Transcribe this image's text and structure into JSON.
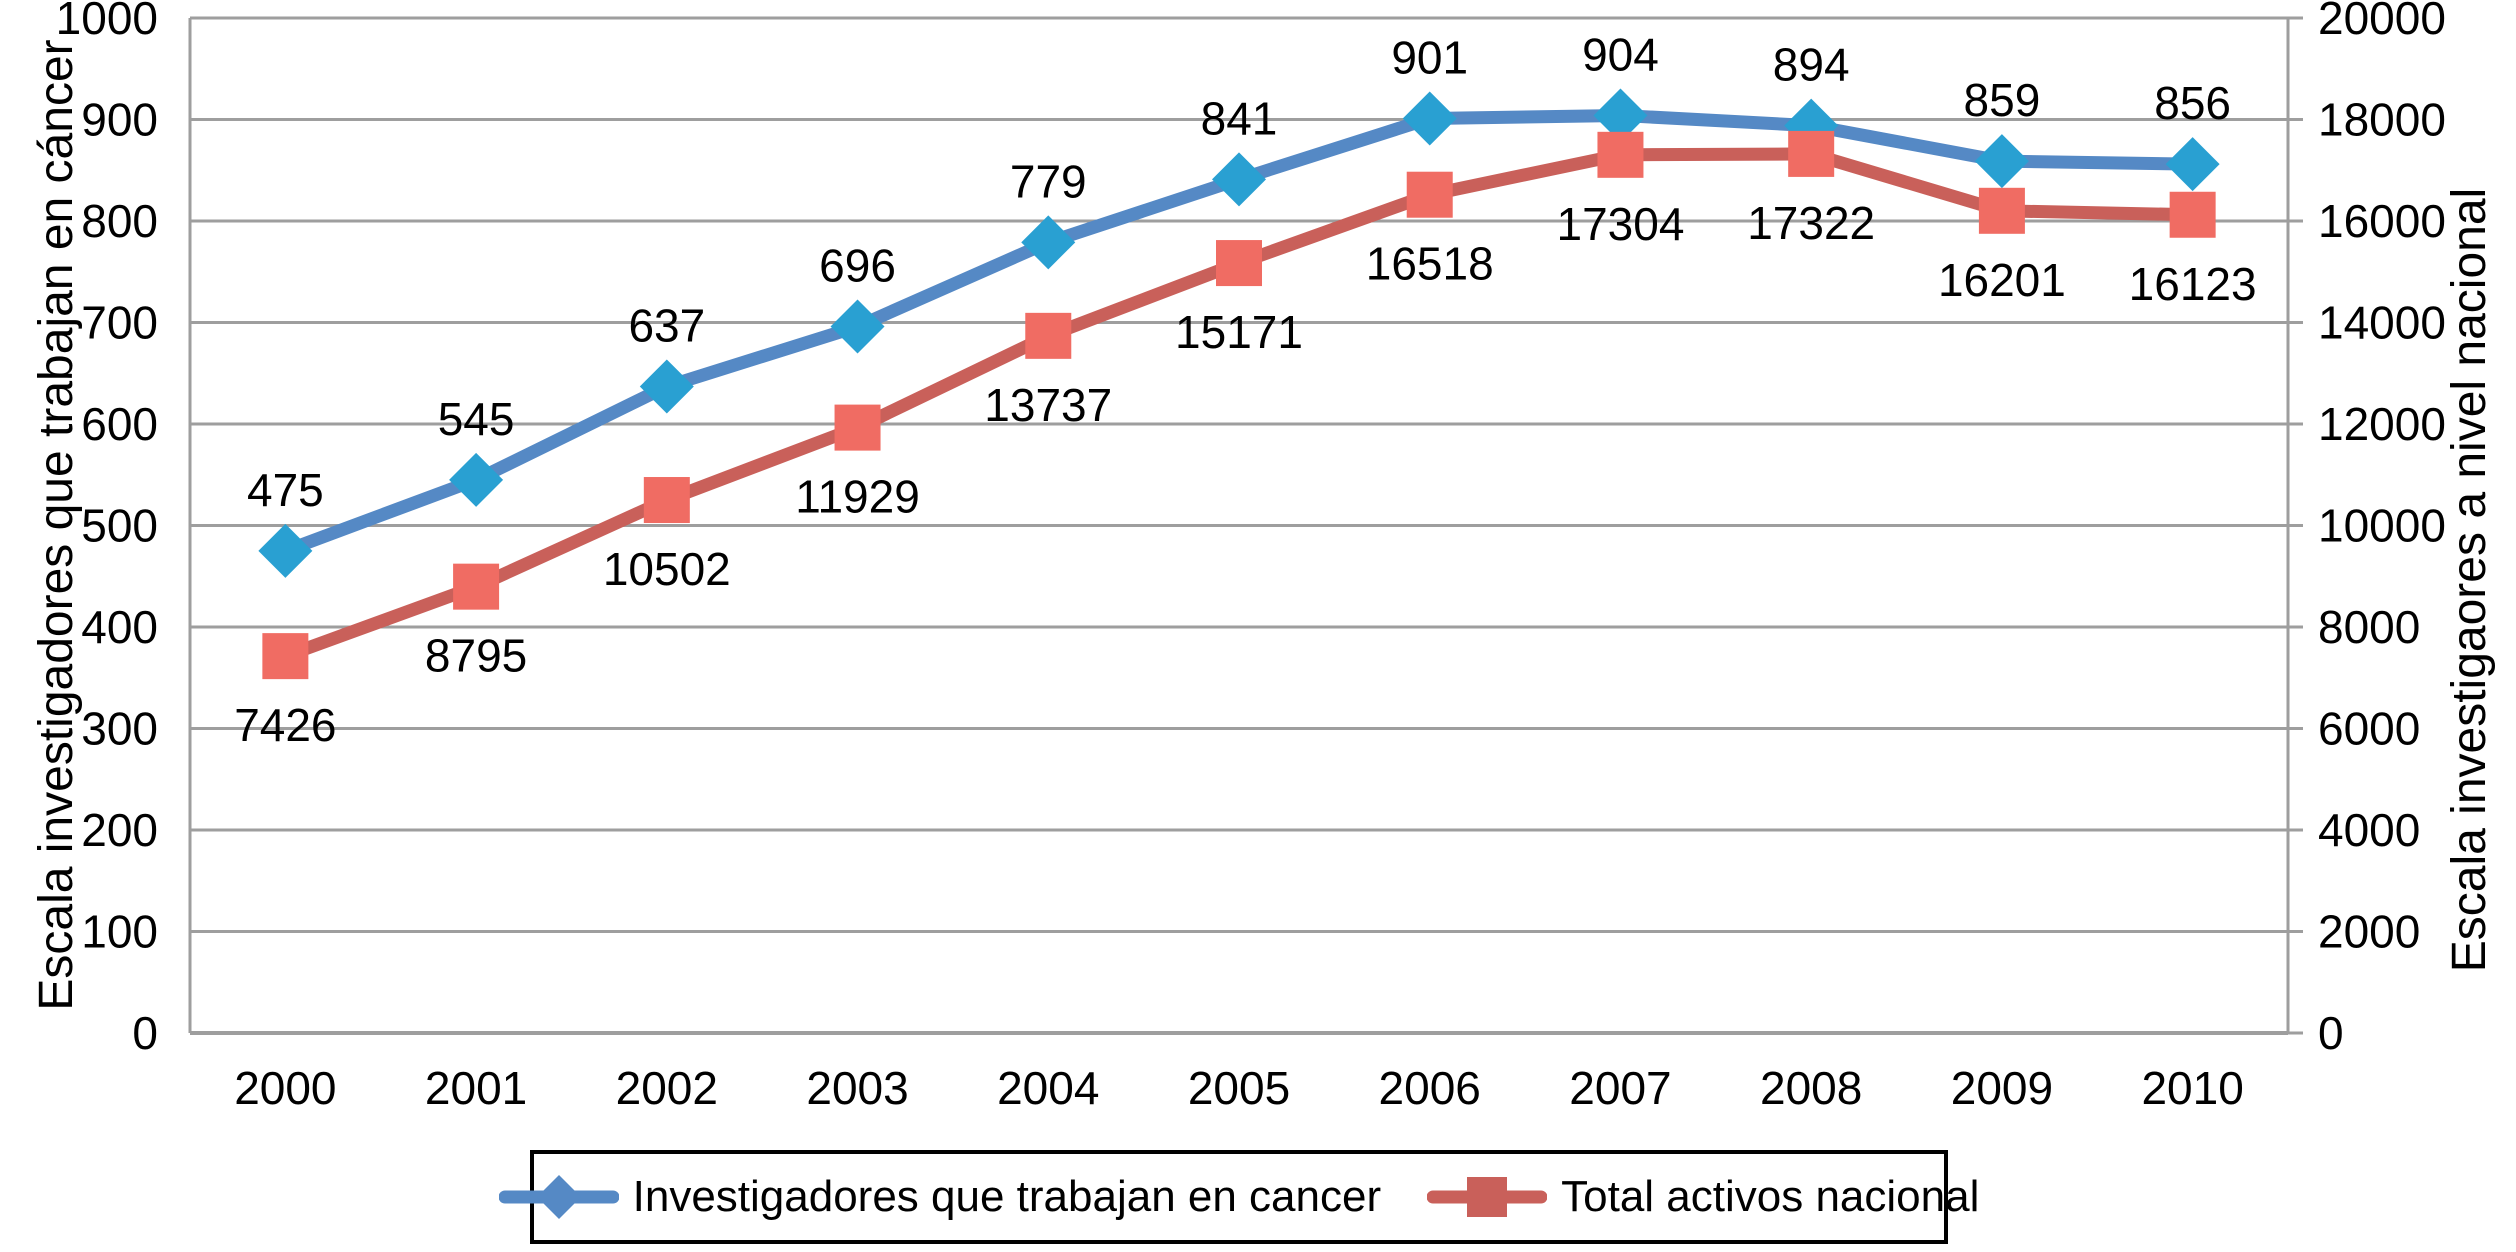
{
  "chart_data": {
    "type": "line",
    "categories": [
      "2000",
      "2001",
      "2002",
      "2003",
      "2004",
      "2005",
      "2006",
      "2007",
      "2008",
      "2009",
      "2010"
    ],
    "series": [
      {
        "name": "Investigadores que trabajan en cancer",
        "yaxis": "left",
        "marker": "diamond",
        "line_color": "#5589C5",
        "marker_color": "#29A0D2",
        "labels_position": "above",
        "values": [
          475,
          545,
          637,
          696,
          779,
          841,
          901,
          904,
          894,
          859,
          856
        ]
      },
      {
        "name": "Total activos nacional",
        "yaxis": "right",
        "marker": "square",
        "line_color": "#C9605A",
        "marker_color": "#F06C63",
        "labels_position": "below",
        "values": [
          7426,
          8795,
          10502,
          11929,
          13737,
          15171,
          16518,
          17304,
          17322,
          16201,
          16123
        ]
      }
    ],
    "axes": {
      "left": {
        "label": "Escala investigadores que trabajan en cáncer",
        "min": 0,
        "max": 1000,
        "step": 100,
        "ticks": [
          "1000",
          "900",
          "800",
          "700",
          "600",
          "500",
          "400",
          "300",
          "200",
          "100",
          "0"
        ]
      },
      "right": {
        "label": "Escala investigaores a nivel nacional",
        "min": 0,
        "max": 20000,
        "step": 2000,
        "ticks": [
          "20000",
          "18000",
          "16000",
          "14000",
          "12000",
          "10000",
          "8000",
          "6000",
          "4000",
          "2000",
          "0"
        ]
      },
      "x": {
        "ticks": [
          "2000",
          "2001",
          "2002",
          "2003",
          "2004",
          "2005",
          "2006",
          "2007",
          "2008",
          "2009",
          "2010"
        ]
      }
    },
    "grid": true,
    "gridline_color": "#9E9E9E",
    "legend": {
      "position": "bottom",
      "border_color": "#000000"
    }
  }
}
